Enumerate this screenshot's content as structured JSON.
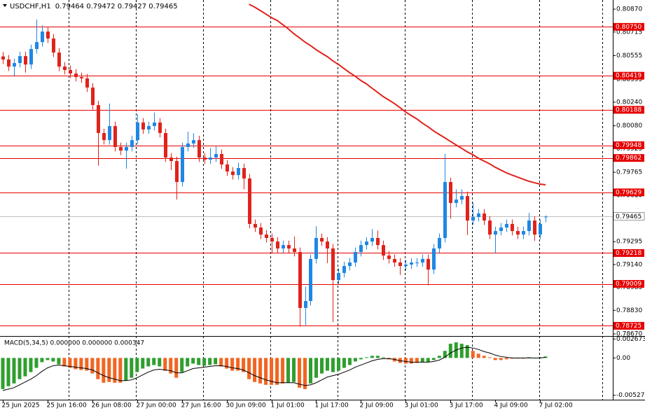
{
  "header": {
    "title": "USDCHF,H1",
    "ohlc": "0.79464 0.79472 0.79427 0.79465"
  },
  "chart_data": [
    {
      "type": "candlestick",
      "xlim": [
        -0.5,
        109
      ],
      "ylim": [
        0.78656,
        0.80932
      ],
      "up_color": "#1e88e5",
      "down_color": "#e0231b",
      "open": [
        0.8055,
        0.80529,
        0.80481,
        0.80505,
        0.80552,
        0.80495,
        0.806,
        0.80647,
        0.80718,
        0.80671,
        0.80576,
        0.80481,
        0.80458,
        0.80434,
        0.8041,
        0.80401,
        0.80339,
        0.8022,
        0.80031,
        0.79983,
        0.80078,
        0.79936,
        0.79912,
        0.79936,
        0.79983,
        0.80102,
        0.80055,
        0.80078,
        0.80102,
        0.80031,
        0.79865,
        0.79841,
        0.79699,
        0.79936,
        0.7996,
        0.79983,
        0.79865,
        0.79851,
        0.79865,
        0.79889,
        0.79818,
        0.7977,
        0.79746,
        0.79794,
        0.79723,
        0.79415,
        0.79391,
        0.79343,
        0.7932,
        0.79296,
        0.79249,
        0.79272,
        0.79249,
        0.79225,
        0.78846,
        0.78893,
        0.79178,
        0.7932,
        0.79296,
        0.79249,
        0.79035,
        0.79083,
        0.7913,
        0.79154,
        0.79225,
        0.79272,
        0.79296,
        0.7932,
        0.79272,
        0.79201,
        0.79178,
        0.79154,
        0.7913,
        0.7914,
        0.79154,
        0.79154,
        0.79178,
        0.79106,
        0.79249,
        0.7932,
        0.79699,
        0.79557,
        0.7958,
        0.79604,
        0.79438,
        0.79462,
        0.79486,
        0.79438,
        0.79343,
        0.79367,
        0.79391,
        0.79415,
        0.79367,
        0.79343,
        0.79367,
        0.79438,
        0.79343,
        0.79464
      ],
      "high": [
        0.8058,
        0.80559,
        0.80535,
        0.80582,
        0.80582,
        0.8063,
        0.808,
        0.8076,
        0.80748,
        0.80701,
        0.80606,
        0.80511,
        0.80488,
        0.80464,
        0.8044,
        0.80431,
        0.80369,
        0.8025,
        0.80061,
        0.8023,
        0.80108,
        0.79966,
        0.79966,
        0.80013,
        0.8016,
        0.80132,
        0.80108,
        0.8017,
        0.80132,
        0.80061,
        0.79895,
        0.79871,
        0.79966,
        0.8004,
        0.8003,
        0.80013,
        0.79895,
        0.7993,
        0.7994,
        0.79919,
        0.79848,
        0.798,
        0.7983,
        0.79824,
        0.79753,
        0.79445,
        0.79421,
        0.79373,
        0.7935,
        0.79326,
        0.79302,
        0.79302,
        0.7933,
        0.79255,
        0.7899,
        0.79208,
        0.794,
        0.7935,
        0.79326,
        0.79279,
        0.79113,
        0.7916,
        0.79184,
        0.79255,
        0.79302,
        0.79326,
        0.7938,
        0.7937,
        0.79302,
        0.79231,
        0.79208,
        0.79184,
        0.7917,
        0.79184,
        0.79184,
        0.79208,
        0.79208,
        0.79279,
        0.7935,
        0.7989,
        0.79729,
        0.7965,
        0.7965,
        0.79634,
        0.7956,
        0.79516,
        0.79516,
        0.79468,
        0.79397,
        0.79421,
        0.79445,
        0.79445,
        0.79397,
        0.79397,
        0.7949,
        0.79468,
        0.79445,
        0.79472
      ],
      "low": [
        0.80499,
        0.80451,
        0.8042,
        0.80475,
        0.8044,
        0.80465,
        0.8057,
        0.80617,
        0.80641,
        0.80546,
        0.80451,
        0.80428,
        0.80404,
        0.8038,
        0.80371,
        0.80309,
        0.8019,
        0.7981,
        0.79953,
        0.79953,
        0.79906,
        0.79882,
        0.7979,
        0.79906,
        0.79953,
        0.80025,
        0.80025,
        0.80048,
        0.80001,
        0.79835,
        0.7978,
        0.7958,
        0.79669,
        0.79906,
        0.7993,
        0.79835,
        0.79821,
        0.79821,
        0.79835,
        0.79788,
        0.7974,
        0.79716,
        0.79716,
        0.7965,
        0.79385,
        0.79361,
        0.79313,
        0.7929,
        0.7922,
        0.79219,
        0.79219,
        0.79219,
        0.79195,
        0.7872,
        0.7873,
        0.78863,
        0.79148,
        0.79266,
        0.7915,
        0.7875,
        0.79005,
        0.79053,
        0.791,
        0.79124,
        0.79195,
        0.79242,
        0.79266,
        0.79242,
        0.79171,
        0.79148,
        0.79124,
        0.7907,
        0.791,
        0.7911,
        0.79124,
        0.79124,
        0.79,
        0.79076,
        0.79219,
        0.7929,
        0.7945,
        0.79527,
        0.7955,
        0.7934,
        0.79408,
        0.79432,
        0.79408,
        0.79313,
        0.79218,
        0.79337,
        0.79361,
        0.79337,
        0.79313,
        0.79313,
        0.79337,
        0.793,
        0.79313,
        0.79427
      ],
      "close": [
        0.80529,
        0.80481,
        0.80505,
        0.80552,
        0.80495,
        0.806,
        0.80647,
        0.80718,
        0.80671,
        0.80576,
        0.80481,
        0.80458,
        0.80434,
        0.8041,
        0.80401,
        0.80339,
        0.8022,
        0.80031,
        0.79983,
        0.80078,
        0.79936,
        0.79912,
        0.79936,
        0.79983,
        0.80102,
        0.80055,
        0.80078,
        0.80102,
        0.80031,
        0.79865,
        0.79841,
        0.79699,
        0.79936,
        0.7996,
        0.79983,
        0.79865,
        0.79851,
        0.79865,
        0.79889,
        0.79818,
        0.7977,
        0.79746,
        0.79794,
        0.79723,
        0.79415,
        0.79391,
        0.79343,
        0.7932,
        0.79296,
        0.79249,
        0.79272,
        0.79249,
        0.79225,
        0.78846,
        0.78893,
        0.79178,
        0.7932,
        0.79296,
        0.79249,
        0.79035,
        0.79083,
        0.7913,
        0.79154,
        0.79225,
        0.79272,
        0.79296,
        0.7932,
        0.79272,
        0.79201,
        0.79178,
        0.79154,
        0.7913,
        0.7914,
        0.79154,
        0.79154,
        0.79178,
        0.79106,
        0.79249,
        0.7932,
        0.79699,
        0.79557,
        0.7958,
        0.79604,
        0.79438,
        0.79462,
        0.79486,
        0.79438,
        0.79343,
        0.79367,
        0.79391,
        0.79415,
        0.79367,
        0.79343,
        0.79367,
        0.79438,
        0.79343,
        0.79415,
        0.79465
      ],
      "ma_color": "#e0231b",
      "ma_values": [
        null,
        null,
        null,
        null,
        null,
        null,
        null,
        null,
        null,
        null,
        null,
        null,
        null,
        null,
        null,
        null,
        null,
        null,
        null,
        null,
        null,
        null,
        null,
        null,
        null,
        null,
        null,
        null,
        null,
        null,
        null,
        null,
        null,
        null,
        null,
        null,
        null,
        null,
        null,
        null,
        null,
        null,
        null,
        null,
        0.80903,
        0.80884,
        0.80861,
        0.80837,
        0.80813,
        0.80794,
        0.80766,
        0.80737,
        0.80704,
        0.80676,
        0.80647,
        0.80623,
        0.80595,
        0.80571,
        0.80548,
        0.80519,
        0.80495,
        0.80467,
        0.80439,
        0.80415,
        0.80386,
        0.80363,
        0.80334,
        0.80306,
        0.80277,
        0.80254,
        0.8023,
        0.80202,
        0.80173,
        0.80149,
        0.80126,
        0.80097,
        0.80073,
        0.80045,
        0.80021,
        0.79998,
        0.79974,
        0.7995,
        0.79927,
        0.79903,
        0.79884,
        0.7986,
        0.79841,
        0.79822,
        0.79799,
        0.7978,
        0.79761,
        0.79746,
        0.79732,
        0.79718,
        0.79704,
        0.79694,
        0.79685,
        0.7968
      ],
      "level_color": "#e60000",
      "levels": [
        {
          "value": 0.8075,
          "label": "0.80750"
        },
        {
          "value": 0.80419,
          "label": "0.80419"
        },
        {
          "value": 0.80188,
          "label": "0.80188"
        },
        {
          "value": 0.79948,
          "label": "0.79948"
        },
        {
          "value": 0.79862,
          "label": "0.79862"
        },
        {
          "value": 0.79629,
          "label": "0.79629"
        },
        {
          "value": 0.79218,
          "label": "0.79218"
        },
        {
          "value": 0.79009,
          "label": "0.79009"
        },
        {
          "value": 0.78725,
          "label": "0.78725"
        }
      ],
      "current_price": {
        "value": 0.79465,
        "label": "0.79465"
      },
      "yticks": [
        {
          "value": 0.8087,
          "label": "0.80870"
        },
        {
          "value": 0.80715,
          "label": "0.80715"
        },
        {
          "value": 0.80555,
          "label": "0.80555"
        },
        {
          "value": 0.80395,
          "label": "0.80395"
        },
        {
          "value": 0.8024,
          "label": "0.80240"
        },
        {
          "value": 0.8008,
          "label": "0.80080"
        },
        {
          "value": 0.79925,
          "label": "0.79925"
        },
        {
          "value": 0.79765,
          "label": "0.79765"
        },
        {
          "value": 0.7961,
          "label": "0.79610"
        },
        {
          "value": 0.79455,
          "label": "0.79455"
        },
        {
          "value": 0.79295,
          "label": "0.79295"
        },
        {
          "value": 0.7914,
          "label": "0.79140"
        },
        {
          "value": 0.78985,
          "label": "0.78985"
        },
        {
          "value": 0.7883,
          "label": "0.78830"
        },
        {
          "value": 0.7867,
          "label": "0.78670"
        }
      ],
      "xticks": [
        {
          "value": 0,
          "label": "25 Jun 2025"
        },
        {
          "value": 8,
          "label": "25 Jun 16:00"
        },
        {
          "value": 16,
          "label": "26 Jun 08:00"
        },
        {
          "value": 24,
          "label": "27 Jun 00:00"
        },
        {
          "value": 32,
          "label": "27 Jun 16:00"
        },
        {
          "value": 40,
          "label": "30 Jun 09:00"
        },
        {
          "value": 48,
          "label": "1 Jul 01:00"
        },
        {
          "value": 56,
          "label": "1 Jul 17:00"
        },
        {
          "value": 64,
          "label": "2 Jul 09:00"
        },
        {
          "value": 72,
          "label": "3 Jul 01:00"
        },
        {
          "value": 80,
          "label": "3 Jul 17:00"
        },
        {
          "value": 88,
          "label": "4 Jul 09:00"
        },
        {
          "value": 96,
          "label": "7 Jul 02:00"
        }
      ]
    },
    {
      "type": "macd",
      "label": "MACD(5,34,5) 0.000000 0.000000 0.000347",
      "xlim": [
        -0.5,
        109
      ],
      "ylim": [
        -0.0059,
        0.003
      ],
      "up_color": "#2e9e2e",
      "down_color": "#f26522",
      "signal_color": "#000000",
      "histogram": [
        -0.0044,
        -0.004,
        -0.0036,
        -0.003,
        -0.0026,
        -0.002,
        -0.0014,
        -0.0006,
        -0.0003,
        -0.0005,
        -0.0009,
        -0.0012,
        -0.0014,
        -0.0016,
        -0.0017,
        -0.0018,
        -0.0022,
        -0.003,
        -0.0035,
        -0.0034,
        -0.0035,
        -0.0035,
        -0.0032,
        -0.0028,
        -0.002,
        -0.0015,
        -0.0012,
        -0.001,
        -0.0012,
        -0.0018,
        -0.0022,
        -0.0028,
        -0.002,
        -0.0012,
        -0.0008,
        -0.001,
        -0.0011,
        -0.001,
        -0.0009,
        -0.0012,
        -0.0015,
        -0.0018,
        -0.0018,
        -0.002,
        -0.003,
        -0.0034,
        -0.0036,
        -0.0038,
        -0.0038,
        -0.0038,
        -0.0036,
        -0.0035,
        -0.0034,
        -0.0042,
        -0.0044,
        -0.0036,
        -0.0028,
        -0.0022,
        -0.0018,
        -0.002,
        -0.0018,
        -0.0014,
        -0.001,
        -0.0005,
        -0.0002,
        0.0001,
        0.0003,
        0.0003,
        0.0001,
        -0.0002,
        -0.0005,
        -0.0007,
        -0.0008,
        -0.0008,
        -0.0007,
        -0.0006,
        -0.0006,
        -0.0003,
        0.0003,
        0.001,
        0.002,
        0.0022,
        0.002,
        0.0018,
        0.001,
        0.0006,
        0.0003,
        0.0001,
        -0.0003,
        -0.0003,
        -0.0002,
        -0.0001,
        -0.0001,
        -0.0001,
        0.0001,
        0,
        0.0001,
        0.0002
      ],
      "signal": [
        -0.0046,
        -0.0044,
        -0.0042,
        -0.0038,
        -0.0034,
        -0.003,
        -0.0025,
        -0.0019,
        -0.0014,
        -0.0011,
        -0.001,
        -0.0011,
        -0.0012,
        -0.0013,
        -0.0014,
        -0.0015,
        -0.0017,
        -0.0021,
        -0.0025,
        -0.0028,
        -0.003,
        -0.0032,
        -0.0032,
        -0.0031,
        -0.0028,
        -0.0024,
        -0.002,
        -0.0017,
        -0.0016,
        -0.0017,
        -0.0018,
        -0.0021,
        -0.0021,
        -0.0018,
        -0.0015,
        -0.0014,
        -0.0013,
        -0.0012,
        -0.0011,
        -0.0011,
        -0.0012,
        -0.0014,
        -0.0015,
        -0.0017,
        -0.0021,
        -0.0025,
        -0.0028,
        -0.0031,
        -0.0033,
        -0.0035,
        -0.0035,
        -0.0035,
        -0.0035,
        -0.0037,
        -0.0039,
        -0.0038,
        -0.0035,
        -0.0031,
        -0.0027,
        -0.0025,
        -0.0023,
        -0.002,
        -0.0017,
        -0.0013,
        -0.001,
        -0.0007,
        -0.0004,
        -0.0002,
        -0.0001,
        -0.0001,
        -0.0002,
        -0.0004,
        -0.0005,
        -0.0006,
        -0.0006,
        -0.0006,
        -0.0006,
        -0.0005,
        -0.0003,
        0.0001,
        0.0007,
        0.0011,
        0.0014,
        0.0015,
        0.0014,
        0.0012,
        0.0009,
        0.0007,
        0.0004,
        0.0002,
        0.0001,
        0,
        0,
        0,
        0,
        0,
        0,
        0.0001
      ],
      "yticks": [
        {
          "value": 0.002673,
          "label": "0.002673"
        },
        {
          "value": 0,
          "label": "0.00"
        },
        {
          "value": -0.005278,
          "label": "-0.005278"
        }
      ]
    }
  ]
}
